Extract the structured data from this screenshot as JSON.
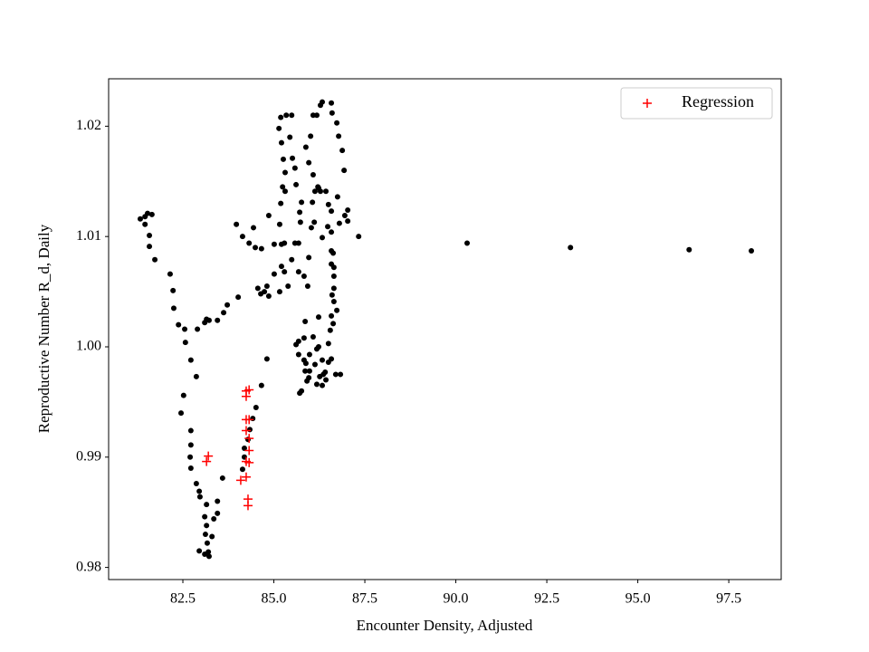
{
  "chart_data": {
    "type": "scatter",
    "xlabel": "Encounter Density, Adjusted",
    "ylabel": "Reproductive Number R_d, Daily",
    "xlim": [
      80.46,
      98.94
    ],
    "ylim": [
      0.9789,
      1.0243
    ],
    "xticks": [
      82.5,
      {
        "value": 85,
        "label": "85.0"
      },
      87.5,
      {
        "value": 90,
        "label": "90.0"
      },
      92.5,
      {
        "value": 95,
        "label": "95.0"
      },
      97.5
    ],
    "yticks": [
      0.98,
      0.99,
      {
        "value": 1,
        "label": "1.00"
      },
      1.01,
      1.02
    ],
    "legend": "upper right",
    "series": [
      {
        "color": "#000000",
        "marker": "dot",
        "x": [
          90.31,
          93.15,
          96.41,
          98.12,
          81.33,
          81.46,
          81.53,
          81.65,
          81.46,
          81.58,
          81.58,
          81.73,
          82.15,
          82.23,
          82.25,
          82.38,
          82.57,
          82.72,
          82.87,
          82.52,
          82.45,
          82.72,
          82.72,
          82.7,
          82.72,
          82.87,
          82.95,
          82.97,
          83.15,
          83.1,
          83.15,
          83.12,
          83.17,
          83.2,
          83.22,
          82.95,
          83.1,
          83.3,
          83.35,
          83.45,
          83.45,
          83.59,
          82.55,
          82.9,
          83.1,
          83.15,
          83.22,
          83.45,
          83.62,
          83.72,
          84.02,
          83.97,
          84.14,
          84.32,
          84.44,
          84.49,
          84.66,
          84.86,
          85.01,
          85.16,
          85.21,
          85.01,
          85.29,
          84.56,
          84.64,
          84.74,
          84.81,
          84.86,
          85.21,
          85.16,
          85.29,
          85.39,
          85.49,
          85.58,
          85.19,
          85.31,
          85.24,
          85.31,
          85.26,
          85.21,
          85.14,
          85.19,
          85.34,
          85.49,
          85.44,
          85.51,
          85.58,
          85.61,
          85.71,
          85.76,
          85.73,
          85.68,
          85.68,
          85.93,
          85.83,
          85.96,
          86.11,
          86.06,
          86.13,
          86.21,
          86.28,
          86.43,
          86.5,
          86.58,
          86.48,
          86.58,
          86.8,
          86.95,
          87.03,
          87.03,
          86.75,
          86.93,
          86.88,
          86.78,
          86.73,
          86.6,
          86.58,
          86.33,
          86.28,
          86.18,
          86.08,
          86.01,
          85.88,
          85.96,
          86.08,
          86.23,
          86.03,
          86.33,
          86.63,
          86.65,
          86.65,
          86.65,
          86.65,
          86.73,
          86.63,
          86.5,
          86.58,
          86.7,
          86.83,
          86.43,
          86.33,
          86.18,
          85.98,
          85.83,
          85.68,
          85.61,
          85.68,
          85.83,
          86.18,
          86.13,
          85.96,
          85.71,
          85.91,
          85.86,
          85.98,
          86.08,
          86.23,
          86.33,
          86.41,
          86.26,
          85.88,
          86.36,
          86.5,
          87.33,
          86.58,
          86.58,
          86.6,
          86.58,
          86.55,
          86.23,
          85.86,
          84.14,
          84.19,
          84.19,
          84.29,
          84.34,
          84.42,
          84.51,
          84.66,
          84.81,
          85.76
        ],
        "values": [
          1.0094,
          1.009,
          1.0088,
          1.0087,
          1.0116,
          1.0118,
          1.0121,
          1.012,
          1.0111,
          1.0101,
          1.0091,
          1.0079,
          1.0066,
          1.0051,
          1.0035,
          1.002,
          1.0004,
          0.9988,
          0.9973,
          0.9956,
          0.994,
          0.9924,
          0.9911,
          0.99,
          0.989,
          0.9876,
          0.9869,
          0.9864,
          0.9857,
          0.9846,
          0.9838,
          0.983,
          0.9822,
          0.9814,
          0.981,
          0.9815,
          0.9812,
          0.9828,
          0.9844,
          0.9849,
          0.986,
          0.9881,
          1.0016,
          1.0016,
          1.0022,
          1.0025,
          1.0024,
          1.0024,
          1.0031,
          1.0038,
          1.0045,
          1.0111,
          1.01,
          1.0094,
          1.0108,
          1.009,
          1.0089,
          1.0119,
          1.0066,
          1.0111,
          1.0093,
          1.0093,
          1.0094,
          1.0053,
          1.0048,
          1.005,
          1.0055,
          1.0046,
          1.0073,
          1.005,
          1.0068,
          1.0055,
          1.0079,
          1.0094,
          1.013,
          1.0141,
          1.0145,
          1.0158,
          1.017,
          1.0185,
          1.0198,
          1.0208,
          1.021,
          1.021,
          1.019,
          1.0171,
          1.0162,
          1.0147,
          1.0122,
          1.0131,
          1.0113,
          1.0094,
          1.0068,
          1.0055,
          1.0064,
          1.0081,
          1.0113,
          1.0131,
          1.0141,
          1.0145,
          1.0141,
          1.0141,
          1.0129,
          1.0123,
          1.0109,
          1.0104,
          1.0112,
          1.0119,
          1.0124,
          1.0114,
          1.0136,
          1.016,
          1.0178,
          1.0191,
          1.0203,
          1.0212,
          1.0221,
          1.0222,
          1.0219,
          1.021,
          1.021,
          1.0191,
          1.0181,
          1.0167,
          1.0156,
          1.0144,
          1.0108,
          1.0099,
          1.0085,
          1.0072,
          1.0064,
          1.0053,
          1.0041,
          1.0033,
          1.0021,
          1.0003,
          0.9989,
          0.9975,
          0.9975,
          0.997,
          0.9965,
          0.9966,
          0.9978,
          0.9988,
          0.9993,
          1.0002,
          1.0005,
          1.0008,
          0.9998,
          0.9984,
          0.9972,
          0.9958,
          0.9969,
          0.9978,
          0.9993,
          1.0009,
          1.0,
          0.9988,
          0.9977,
          0.9973,
          0.9985,
          0.9975,
          0.9986,
          1.01,
          1.0087,
          1.0075,
          1.0047,
          1.0028,
          1.0015,
          1.0027,
          1.0023,
          0.9889,
          0.99,
          0.9908,
          0.9916,
          0.9925,
          0.9935,
          0.9945,
          0.9965,
          0.9989,
          0.996
        ]
      },
      {
        "name": "Regression",
        "color": "#ff0000",
        "marker": "plus",
        "x": [
          83.2,
          83.15,
          84.09,
          84.24,
          84.32,
          84.24,
          84.32,
          84.24,
          84.32,
          84.24,
          84.32,
          84.24,
          84.32,
          84.24,
          84.29,
          84.29
        ],
        "values": [
          0.9901,
          0.9896,
          0.9879,
          0.996,
          0.9961,
          0.9955,
          0.9934,
          0.9934,
          0.9917,
          0.9924,
          0.9906,
          0.9896,
          0.9895,
          0.9882,
          0.9862,
          0.9856
        ]
      }
    ]
  }
}
